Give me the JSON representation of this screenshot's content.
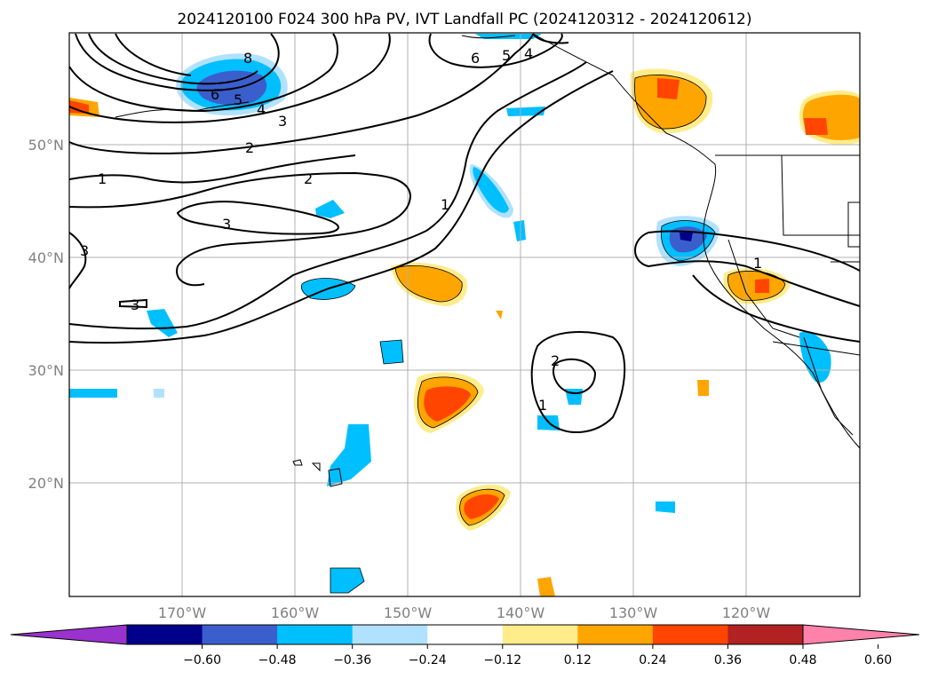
{
  "title": "2024120100 F024 300 hPa PV, IVT Landfall PC (2024120312 - 2024120612)",
  "lat_labels": [
    "50°N",
    "40°N",
    "30°N",
    "20°N"
  ],
  "lon_labels": [
    "170°W",
    "160°W",
    "150°W",
    "140°W",
    "130°W",
    "120°W"
  ],
  "contour_labels": [
    "8",
    "6",
    "5",
    "4",
    "3",
    "2",
    "1",
    "2",
    "3",
    "1",
    "3",
    "3",
    "6",
    "5",
    "4",
    "2",
    "1",
    "1"
  ],
  "colorbar": {
    "ticks": [
      "−0.60",
      "−0.48",
      "−0.36",
      "−0.24",
      "−0.12",
      "0.12",
      "0.24",
      "0.36",
      "0.48",
      "0.60"
    ],
    "colors": [
      "#9a32cd",
      "#00008b",
      "#3a5fcd",
      "#00bfff",
      "#b0e2ff",
      "#ffffff",
      "#ffec8b",
      "#ffa500",
      "#ff4500",
      "#b22222",
      "#ff82ab"
    ]
  },
  "colors": {
    "neg_strong": "#3a5fcd",
    "neg_mid": "#00bfff",
    "neg_weak": "#b0e2ff",
    "pos_weak": "#ffec8b",
    "pos_mid": "#ffa500",
    "pos_strong": "#ff4500",
    "neg_darkest": "#00008b"
  }
}
